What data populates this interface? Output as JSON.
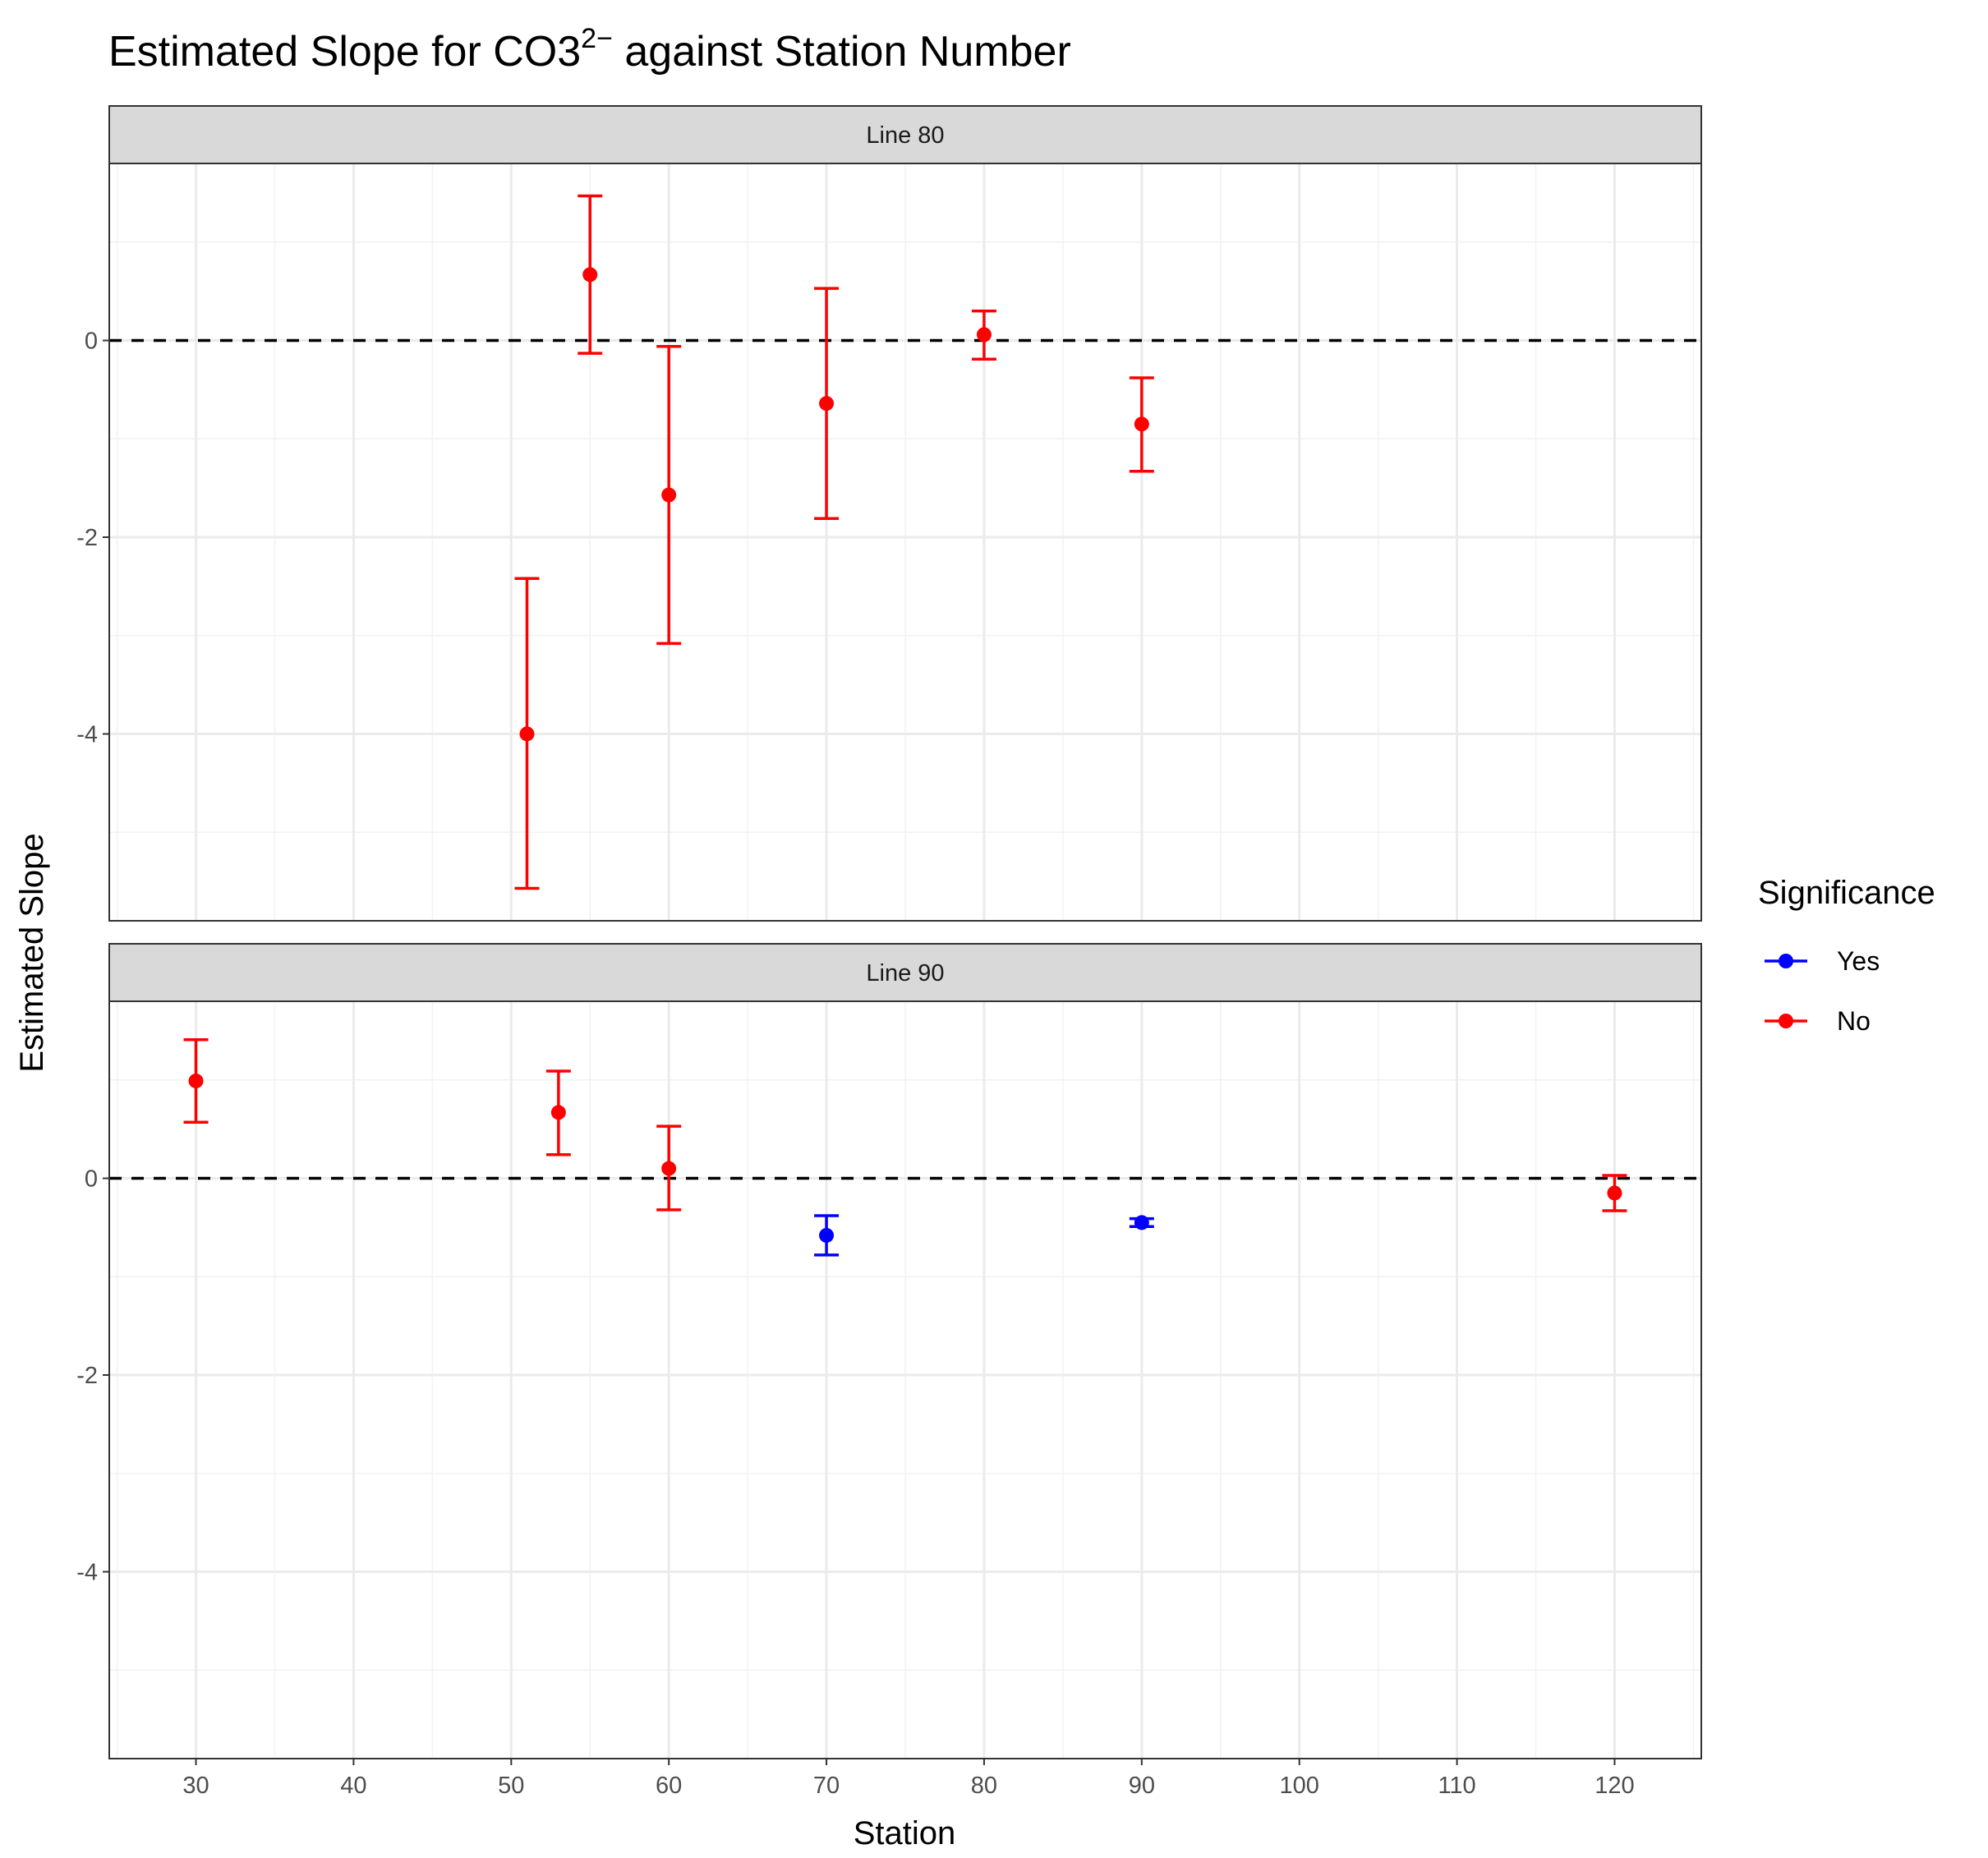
{
  "chart_data": {
    "type": "scatter",
    "title_main": "Estimated Slope for CO3",
    "title_superscript": "2−",
    "title_rest": " against Station Number",
    "xlabel": "Station",
    "ylabel": "Estimated Slope",
    "xlim": [
      24.5,
      125.5
    ],
    "ylim": [
      -5.9,
      1.8
    ],
    "x_ticks": [
      30,
      40,
      50,
      60,
      70,
      80,
      90,
      100,
      110,
      120
    ],
    "y_ticks": [
      -4,
      -2,
      0
    ],
    "reference_line": 0,
    "grid": true,
    "legend": {
      "title": "Significance",
      "placement": "right",
      "entries": [
        {
          "label": "Yes",
          "color": "#0000ff"
        },
        {
          "label": "No",
          "color": "#ff0000"
        }
      ]
    },
    "panels": [
      {
        "label": "Line 80",
        "points": [
          {
            "x": 51,
            "y": -4.0,
            "ymin": -5.57,
            "ymax": -2.42,
            "significance": "No"
          },
          {
            "x": 55,
            "y": 0.67,
            "ymin": -0.13,
            "ymax": 1.47,
            "significance": "No"
          },
          {
            "x": 60,
            "y": -1.57,
            "ymin": -3.08,
            "ymax": -0.06,
            "significance": "No"
          },
          {
            "x": 70,
            "y": -0.64,
            "ymin": -1.81,
            "ymax": 0.53,
            "significance": "No"
          },
          {
            "x": 80,
            "y": 0.06,
            "ymin": -0.19,
            "ymax": 0.3,
            "significance": "No"
          },
          {
            "x": 90,
            "y": -0.85,
            "ymin": -1.33,
            "ymax": -0.38,
            "significance": "No"
          }
        ]
      },
      {
        "label": "Line 90",
        "points": [
          {
            "x": 30,
            "y": 0.99,
            "ymin": 0.57,
            "ymax": 1.41,
            "significance": "No"
          },
          {
            "x": 53,
            "y": 0.67,
            "ymin": 0.24,
            "ymax": 1.09,
            "significance": "No"
          },
          {
            "x": 60,
            "y": 0.1,
            "ymin": -0.32,
            "ymax": 0.53,
            "significance": "No"
          },
          {
            "x": 70,
            "y": -0.58,
            "ymin": -0.78,
            "ymax": -0.38,
            "significance": "Yes"
          },
          {
            "x": 90,
            "y": -0.45,
            "ymin": -0.49,
            "ymax": -0.41,
            "significance": "Yes"
          },
          {
            "x": 120,
            "y": -0.15,
            "ymin": -0.33,
            "ymax": 0.03,
            "significance": "No"
          }
        ]
      }
    ],
    "colors": {
      "Yes": "#0000ff",
      "No": "#ff0000"
    }
  }
}
